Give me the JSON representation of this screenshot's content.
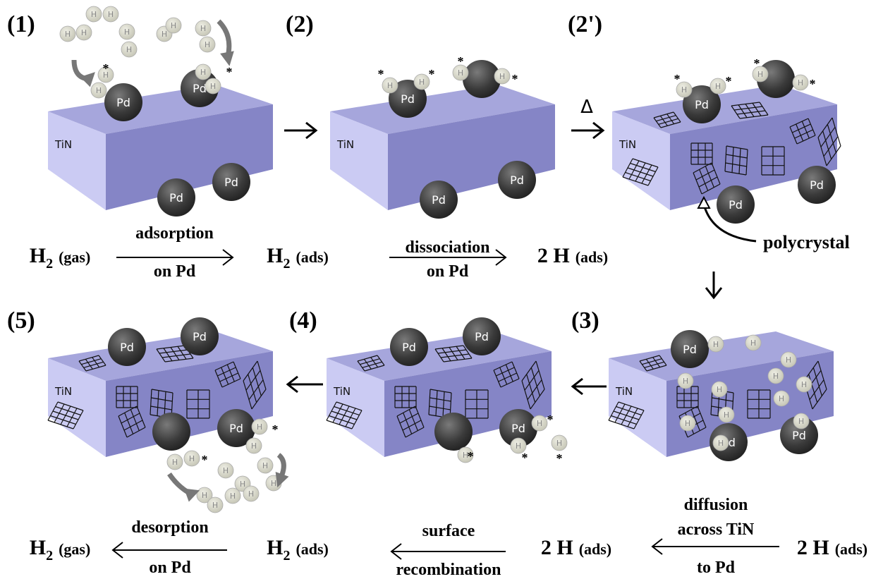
{
  "steps": [
    "(1)",
    "(2)",
    "(2')",
    "(3)",
    "(4)",
    "(5)"
  ],
  "support_label": "TiN",
  "sphere_label": "Pd",
  "atom_label": "H",
  "site_marker": "*",
  "heat_symbol": "Δ",
  "polycrystal_label": "polycrystal",
  "top_equation": {
    "species": [
      {
        "main": "H",
        "sub": "2",
        "state": "(gas)"
      },
      {
        "main": "H",
        "sub": "2",
        "state": "(ads)"
      },
      {
        "main": "2 H",
        "state": "(ads)"
      }
    ],
    "arrows": [
      {
        "above": [
          "adsorption"
        ],
        "below": [
          "on Pd"
        ]
      },
      {
        "above": [
          "dissociation"
        ],
        "below": [
          "on Pd"
        ]
      }
    ]
  },
  "bottom_equation": {
    "species": [
      {
        "main": "H",
        "sub": "2",
        "state": "(gas)"
      },
      {
        "main": "H",
        "sub": "2",
        "state": "(ads)"
      },
      {
        "main": "2 H",
        "state": "(ads)"
      },
      {
        "main": "2 H",
        "state": "(ads)"
      }
    ],
    "arrows": [
      {
        "above": [
          "desorption"
        ],
        "below": [
          "on Pd"
        ]
      },
      {
        "above": [
          "surface"
        ],
        "below": [
          "recombination"
        ]
      },
      {
        "above": [
          "diffusion",
          "across TiN"
        ],
        "below": [
          "to Pd"
        ]
      }
    ]
  }
}
